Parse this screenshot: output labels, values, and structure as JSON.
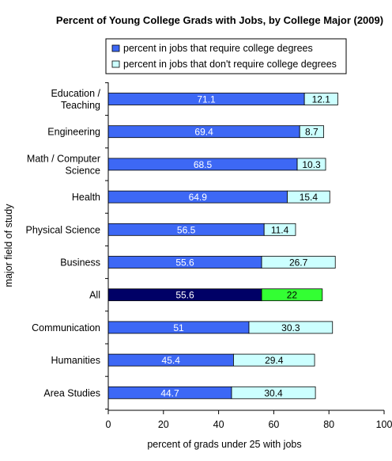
{
  "chart_data": {
    "type": "bar",
    "orientation": "horizontal",
    "stacked": true,
    "title": "Percent of Young College Grads with Jobs, by College Major (2009)",
    "xlabel": "percent of grads under 25 with jobs",
    "ylabel": "major field of study",
    "xlim": [
      0,
      100
    ],
    "xticks": [
      "0",
      "20",
      "40",
      "60",
      "80",
      "100"
    ],
    "grid": false,
    "legend_position": "top",
    "categories": [
      [
        "Education /",
        "Teaching"
      ],
      [
        "Engineering"
      ],
      [
        "Math / Computer",
        "Science"
      ],
      [
        "Health"
      ],
      [
        "Physical Science"
      ],
      [
        "Business"
      ],
      [
        "All"
      ],
      [
        "Communication"
      ],
      [
        "Humanities"
      ],
      [
        "Area Studies"
      ]
    ],
    "series": [
      {
        "name": "percent in jobs that require college degrees",
        "color": "#3d68f5",
        "values": [
          71.1,
          69.4,
          68.5,
          64.9,
          56.5,
          55.6,
          55.6,
          51,
          45.4,
          44.7
        ],
        "labels": [
          "71.1",
          "69.4",
          "68.5",
          "64.9",
          "56.5",
          "55.6",
          "55.6",
          "51",
          "45.4",
          "44.7"
        ]
      },
      {
        "name": "percent in jobs that don't require college degrees",
        "color": "#ccffff",
        "values": [
          12.1,
          8.7,
          10.3,
          15.4,
          11.4,
          26.7,
          22,
          30.3,
          29.4,
          30.4
        ],
        "labels": [
          "12.1",
          "8.7",
          "10.3",
          "15.4",
          "11.4",
          "26.7",
          "22",
          "30.3",
          "29.4",
          "30.4"
        ]
      }
    ],
    "highlight": {
      "category_index": 6,
      "colors": [
        "#000066",
        "#33ff33"
      ]
    }
  }
}
